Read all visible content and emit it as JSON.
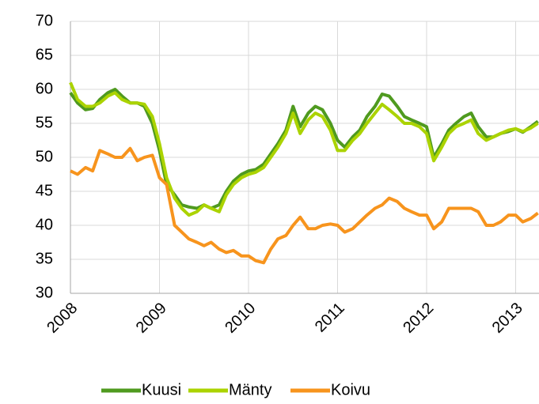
{
  "chart_data": {
    "type": "line",
    "x": [
      2008,
      2008.08,
      2008.17,
      2008.25,
      2008.33,
      2008.42,
      2008.5,
      2008.58,
      2008.67,
      2008.75,
      2008.83,
      2008.92,
      2009,
      2009.08,
      2009.17,
      2009.25,
      2009.33,
      2009.42,
      2009.5,
      2009.58,
      2009.67,
      2009.75,
      2009.83,
      2009.92,
      2010,
      2010.08,
      2010.17,
      2010.25,
      2010.33,
      2010.42,
      2010.5,
      2010.58,
      2010.67,
      2010.75,
      2010.83,
      2010.92,
      2011,
      2011.08,
      2011.17,
      2011.25,
      2011.33,
      2011.42,
      2011.5,
      2011.58,
      2011.67,
      2011.75,
      2011.83,
      2011.92,
      2012,
      2012.08,
      2012.17,
      2012.25,
      2012.33,
      2012.42,
      2012.5,
      2012.58,
      2012.67,
      2012.75,
      2012.83,
      2012.92,
      2013,
      2013.08,
      2013.17,
      2013.25
    ],
    "series": [
      {
        "name": "Kuusi",
        "color": "#4f9a1f",
        "values": [
          59.5,
          58,
          57,
          57.2,
          58.5,
          59.5,
          60,
          59,
          58,
          58,
          57.5,
          55,
          51,
          46,
          44.5,
          43,
          42.7,
          42.5,
          43,
          42.5,
          43,
          45,
          46.5,
          47.5,
          48,
          48.2,
          49,
          50.5,
          52,
          54,
          57.5,
          54.5,
          56.5,
          57.5,
          57,
          55,
          52.5,
          51.5,
          53,
          54,
          56,
          57.5,
          59.3,
          59,
          57.5,
          56,
          55.5,
          55,
          54.5,
          50,
          52,
          54,
          55,
          56,
          56.5,
          54.5,
          53,
          53,
          53.5,
          53.8,
          54.2,
          53.7,
          54.5,
          55.3
        ]
      },
      {
        "name": "Mänty",
        "color": "#abd300",
        "values": [
          61,
          58.5,
          57.5,
          57.5,
          58,
          59,
          59.5,
          58.5,
          58,
          58,
          57.8,
          56,
          52,
          47,
          44,
          42.5,
          41.5,
          42,
          43,
          42.5,
          42,
          44.5,
          46,
          47,
          47.5,
          47.8,
          48.5,
          50,
          51.5,
          53.5,
          56.5,
          53.5,
          55.5,
          56.5,
          56,
          54,
          51,
          51,
          52.5,
          53.5,
          55,
          56.5,
          57.8,
          57,
          56,
          55,
          55,
          54.5,
          53.5,
          49.5,
          51.5,
          53.5,
          54.5,
          55,
          55.5,
          53.5,
          52.5,
          53,
          53.5,
          54,
          54.2,
          53.8,
          54.3,
          55
        ]
      },
      {
        "name": "Koivu",
        "color": "#f7941d",
        "values": [
          48,
          47.5,
          48.5,
          48,
          51,
          50.5,
          50,
          50,
          51.3,
          49.5,
          50,
          50.3,
          47,
          46,
          40,
          39,
          38,
          37.5,
          37,
          37.5,
          36.5,
          36,
          36.3,
          35.5,
          35.5,
          34.8,
          34.5,
          36.5,
          38,
          38.5,
          40,
          41.2,
          39.5,
          39.5,
          40,
          40.2,
          40,
          39,
          39.5,
          40.5,
          41.5,
          42.5,
          43,
          44,
          43.5,
          42.5,
          42,
          41.5,
          41.5,
          39.5,
          40.5,
          42.5,
          42.5,
          42.5,
          42.5,
          42,
          40,
          40,
          40.5,
          41.5,
          41.5,
          40.5,
          41,
          41.8
        ]
      }
    ],
    "xlim": [
      2008,
      2013.27
    ],
    "xticks": [
      2008,
      2009,
      2010,
      2011,
      2012,
      2013
    ],
    "ylim": [
      30,
      70
    ],
    "yticks": [
      30,
      35,
      40,
      45,
      50,
      55,
      60,
      65,
      70
    ],
    "grid": true,
    "legend": "bottom"
  }
}
